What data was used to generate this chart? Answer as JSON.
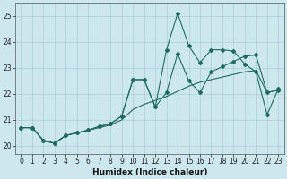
{
  "title": "",
  "xlabel": "Humidex (Indice chaleur)",
  "bg_color": "#cce8ee",
  "grid_color": "#aacdd6",
  "line_color": "#1e6b5e",
  "xlim": [
    -0.5,
    23.5
  ],
  "ylim": [
    19.7,
    25.5
  ],
  "yticks": [
    20,
    21,
    22,
    23,
    24,
    25
  ],
  "xticks": [
    0,
    1,
    2,
    3,
    4,
    5,
    6,
    7,
    8,
    9,
    10,
    11,
    12,
    13,
    14,
    15,
    16,
    17,
    18,
    19,
    20,
    21,
    22,
    23
  ],
  "line1_x": [
    0,
    1,
    2,
    3,
    4,
    5,
    6,
    7,
    8,
    9,
    10,
    11,
    12,
    13,
    14,
    15,
    16,
    17,
    18,
    19,
    20,
    21,
    22,
    23
  ],
  "line1_y": [
    20.7,
    20.7,
    20.2,
    20.1,
    20.4,
    20.5,
    20.6,
    20.75,
    20.85,
    21.15,
    22.55,
    22.55,
    21.5,
    23.7,
    25.1,
    23.85,
    23.2,
    23.7,
    23.7,
    23.65,
    23.15,
    22.85,
    21.2,
    22.2
  ],
  "line2_x": [
    0,
    1,
    2,
    3,
    4,
    5,
    6,
    7,
    8,
    9,
    10,
    11,
    12,
    13,
    14,
    15,
    16,
    17,
    18,
    19,
    20,
    21,
    22,
    23
  ],
  "line2_y": [
    20.7,
    20.7,
    20.2,
    20.1,
    20.4,
    20.5,
    20.6,
    20.75,
    20.85,
    21.15,
    22.55,
    22.55,
    21.5,
    22.05,
    23.55,
    22.5,
    22.05,
    22.85,
    23.05,
    23.25,
    23.45,
    23.5,
    22.05,
    22.15
  ],
  "line3_x": [
    0,
    1,
    2,
    3,
    4,
    5,
    6,
    7,
    8,
    9,
    10,
    11,
    12,
    13,
    14,
    15,
    16,
    17,
    18,
    19,
    20,
    21,
    22,
    23
  ],
  "line3_y": [
    20.7,
    20.7,
    20.2,
    20.1,
    20.4,
    20.5,
    20.6,
    20.7,
    20.8,
    21.0,
    21.4,
    21.6,
    21.75,
    21.9,
    22.1,
    22.3,
    22.45,
    22.55,
    22.65,
    22.75,
    22.85,
    22.9,
    22.05,
    22.15
  ]
}
